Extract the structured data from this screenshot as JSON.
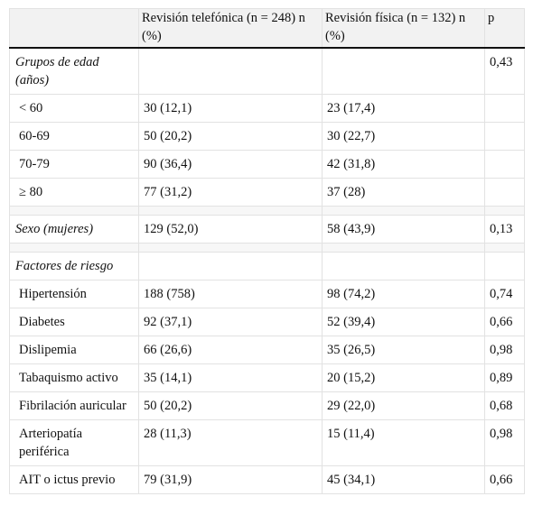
{
  "table": {
    "header": [
      "Revisión telefónica (n = 248) n (%)",
      "Revisión física (n = 132) n (%)",
      "p"
    ],
    "sections": [
      [
        {
          "label": "Grupos de edad (años)",
          "italic": true,
          "p": "0,43"
        },
        {
          "label": "< 60",
          "telefonica": "30 (12,1)",
          "fisica": "23 (17,4)"
        },
        {
          "label": "60-69",
          "telefonica": "50 (20,2)",
          "fisica": "30 (22,7)"
        },
        {
          "label": "70-79",
          "telefonica": "90 (36,4)",
          "fisica": "42 (31,8)"
        },
        {
          "label": "≥ 80",
          "telefonica": "77 (31,2)",
          "fisica": "37 (28)"
        }
      ],
      [
        {
          "label": "Sexo (mujeres)",
          "italic": true,
          "telefonica": "129 (52,0)",
          "fisica": "58 (43,9)",
          "p": "0,13"
        }
      ],
      [
        {
          "label": "Factores de riesgo",
          "italic": true
        },
        {
          "label": "Hipertensión",
          "telefonica": "188 (758)",
          "fisica": "98 (74,2)",
          "p": "0,74"
        },
        {
          "label": "Diabetes",
          "telefonica": "92 (37,1)",
          "fisica": "52 (39,4)",
          "p": "0,66"
        },
        {
          "label": "Dislipemia",
          "telefonica": "66 (26,6)",
          "fisica": "35 (26,5)",
          "p": "0,98"
        },
        {
          "label": "Tabaquismo activo",
          "telefonica": "35 (14,1)",
          "fisica": "20 (15,2)",
          "p": "0,89"
        },
        {
          "label": "Fibrilación auricular",
          "telefonica": "50 (20,2)",
          "fisica": "29 (22,0)",
          "p": "0,68"
        },
        {
          "label": "Arteriopatía periférica",
          "telefonica": "28 (11,3)",
          "fisica": "15 (11,4)",
          "p": "0,98"
        },
        {
          "label": "AIT o ictus previo",
          "telefonica": "79 (31,9)",
          "fisica": "45 (34,1)",
          "p": "0,66"
        }
      ]
    ]
  }
}
